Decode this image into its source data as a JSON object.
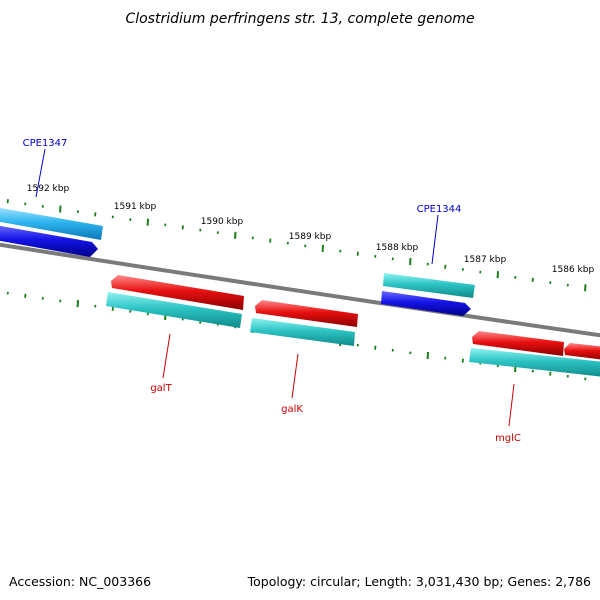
{
  "title": "Clostridium perfringens str. 13, complete genome",
  "colors": {
    "backbone": "#7a7a7a",
    "ticks": "#1a7f1a",
    "cds_cyan": "#2ec4c4",
    "cds_lightblue": "#2fb6f0",
    "cds_blue": "#1414e6",
    "cds_red": "#e81010",
    "label_blue": "#0000cc",
    "label_red": "#cc0000"
  },
  "scale_labels": [
    "1592 kbp",
    "1591 kbp",
    "1590 kbp",
    "1589 kbp",
    "1588 kbp",
    "1587 kbp",
    "1586 kbp"
  ],
  "gene_labels": [
    "CPE1347",
    "CPE1344",
    "galT",
    "galK",
    "mglC"
  ],
  "footer": {
    "accession": "Accession: NC_003366",
    "summary": "Topology: circular; Length: 3,031,430 bp; Genes: 2,786"
  }
}
